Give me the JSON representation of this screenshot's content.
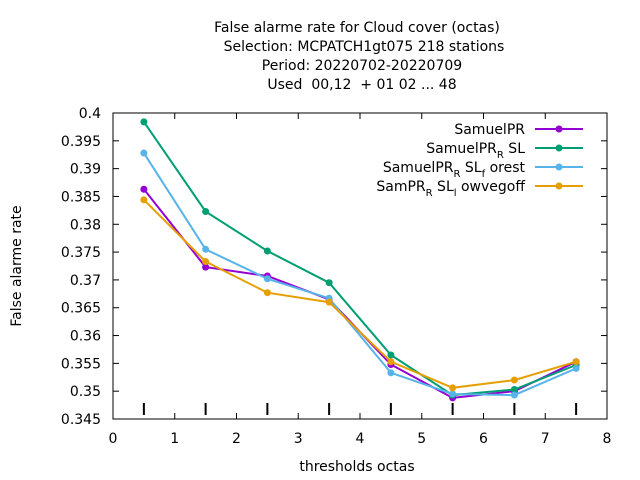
{
  "chart_data": {
    "type": "line",
    "title_lines": [
      "False alarme rate  for Cloud cover (octas)",
      "Selection: MCPATCH1gt075    218 stations",
      "Period: 20220702-20220709",
      "Used  00,12  + 01 02 ... 48"
    ],
    "xlabel": "thresholds octas",
    "ylabel": "False alarme rate",
    "xlim": [
      0,
      8
    ],
    "ylim": [
      0.345,
      0.4
    ],
    "xticks": [
      "0",
      "1",
      "2",
      "3",
      "4",
      "5",
      "6",
      "7",
      "8"
    ],
    "yticks": [
      "0.345",
      "0.35",
      "0.355",
      "0.36",
      "0.365",
      "0.37",
      "0.375",
      "0.38",
      "0.385",
      "0.39",
      "0.395",
      "0.4"
    ],
    "grid": false,
    "legend_position": "top-right",
    "x": [
      0.5,
      1.5,
      2.5,
      3.5,
      4.5,
      5.5,
      6.5,
      7.5
    ],
    "series": [
      {
        "name": "SamuelPR",
        "legend": {
          "main": "SamuelPR",
          "parts": []
        },
        "color": "#9400d3",
        "values": [
          0.3863,
          0.3723,
          0.3707,
          0.3665,
          0.3548,
          0.3488,
          0.35,
          0.3553
        ]
      },
      {
        "name": "SamuelPR_R SL",
        "legend": {
          "main": "SamuelPR",
          "parts": [
            [
              "R",
              " SL"
            ]
          ]
        },
        "color": "#009e73",
        "values": [
          0.3984,
          0.3823,
          0.3752,
          0.3695,
          0.3565,
          0.3493,
          0.3503,
          0.3547
        ]
      },
      {
        "name": "SamuelPR_R SL_f orest",
        "legend": {
          "main": "SamuelPR",
          "parts": [
            [
              "R",
              " SL"
            ],
            [
              "f",
              " orest"
            ]
          ]
        },
        "color": "#56b4e9",
        "values": [
          0.3928,
          0.3755,
          0.3702,
          0.3667,
          0.3533,
          0.3495,
          0.3493,
          0.3541
        ]
      },
      {
        "name": "SamPR_R SL_l owvegoff",
        "legend": {
          "main": "SamPR",
          "parts": [
            [
              "R",
              " SL"
            ],
            [
              "l",
              " owvegoff"
            ]
          ]
        },
        "color": "#e69f00",
        "values": [
          0.3844,
          0.3733,
          0.3677,
          0.366,
          0.3553,
          0.3506,
          0.352,
          0.3553
        ]
      }
    ]
  }
}
